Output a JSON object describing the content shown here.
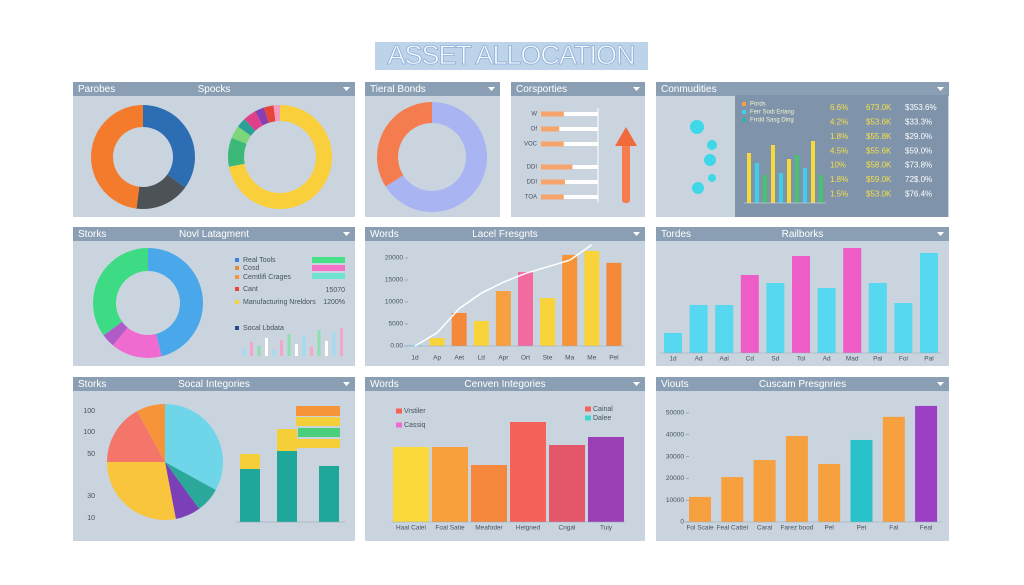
{
  "title": "ASSET ALLOCATION",
  "chart_data": [
    {
      "type": "donut",
      "title": "Parobes",
      "subtitle": "Spocks",
      "series": [
        {
          "values": [
            35,
            17,
            48
          ],
          "colors": [
            "#2d6db3",
            "#4d5256",
            "#f37b2b"
          ]
        },
        {
          "values": [
            72,
            9,
            4,
            3,
            4,
            3,
            3,
            2
          ],
          "colors": [
            "#f9cf3c",
            "#3cb878",
            "#7ed67a",
            "#2aa198",
            "#e0408a",
            "#8a3fb0",
            "#e9443a",
            "#f49ac1"
          ]
        }
      ]
    },
    {
      "type": "donut",
      "title": "Tieral Bonds",
      "series": [
        {
          "values": [
            66,
            34
          ],
          "colors": [
            "#a9b4f3",
            "#f47c4f"
          ]
        }
      ]
    },
    {
      "type": "hbar",
      "title": "Corsporties",
      "categories": [
        "W",
        "Of",
        "VOC",
        "DDI",
        "DDI",
        "TOA"
      ],
      "values": [
        40,
        32,
        40,
        55,
        42,
        40
      ],
      "color": "#f6a46c",
      "xlim": [
        0,
        100
      ]
    },
    {
      "type": "table",
      "title": "Conmudities",
      "legend": [
        {
          "name": "Pords",
          "color": "#f7a040"
        },
        {
          "name": "Ferr Sodi Ertang",
          "color": "#3fd0e8"
        },
        {
          "name": "Frrdd Sasg Ding",
          "color": "#2fb3a8"
        }
      ],
      "rows": [
        [
          "6.6%",
          "673.0K",
          "$353.6%"
        ],
        [
          "4.2%",
          "$53.6K",
          "$33.3%"
        ],
        [
          "1.8%",
          "$55.8K",
          "$29.0%"
        ],
        [
          "4.5%",
          "$55.6K",
          "$59.0%"
        ],
        [
          "10%",
          "$58.0K",
          "$73.8%"
        ],
        [
          "1.8%",
          "$59.0K",
          "72$.0%"
        ],
        [
          "1.5%",
          "$53.0K",
          "$76.4%"
        ]
      ],
      "values": [
        50,
        40,
        28,
        58,
        30,
        44,
        48,
        35,
        62,
        28
      ],
      "colors": [
        "#f5d93a",
        "#3fd0e8",
        "#49c46e",
        "#f5d93a",
        "#3fd0e8",
        "#f5d93a",
        "#49c46e",
        "#3fd0e8",
        "#f5d93a",
        "#49c46e"
      ],
      "ylim": [
        0,
        70
      ]
    },
    {
      "type": "donut-legend",
      "title": "Storks",
      "subtitle": "Novl Latagment",
      "values": [
        46,
        15,
        4,
        35
      ],
      "colors": [
        "#4aa8ea",
        "#f06bd0",
        "#b05cc8",
        "#3ddc84"
      ],
      "legend": [
        {
          "name": "Real Tools",
          "color": "#3c7fd8"
        },
        {
          "name": "Cosd",
          "color": "#e58a3a"
        },
        {
          "name": "Cemtlifi Crages",
          "color": "#f7943a"
        },
        {
          "name": "Cant",
          "color": "#e9443a"
        },
        {
          "name": "Manufacturing Nreldors",
          "color": "#f5d33a"
        },
        {
          "name": "Socal Lbdata",
          "color": "#2b4a8a"
        }
      ],
      "notes": [
        "15070",
        "1200%"
      ],
      "swatches": [
        "#49e08a",
        "#f472c9",
        "#6fe3d0"
      ],
      "bars": {
        "values": [
          8,
          14,
          10,
          18,
          6,
          16,
          22,
          12,
          20,
          9,
          26,
          15,
          24,
          28
        ],
        "colors": [
          "#9fdcf0",
          "#f4a6c8",
          "#8fe0b0",
          "#ffffff"
        ]
      },
      "ylim": [
        0,
        30
      ]
    },
    {
      "type": "bar-line",
      "title": "Words",
      "subtitle": "Lacel Fresgnts",
      "categories": [
        "1d",
        "Ap",
        "Aet",
        "Ld",
        "Apr",
        "Ort",
        "Ste",
        "Ma",
        "Me",
        "Pel"
      ],
      "series": [
        {
          "values": [
            250,
            1800,
            7500,
            5700,
            12500,
            16800,
            10900,
            20700,
            21600,
            18900
          ],
          "colors": [
            "#8fd0f0",
            "#f9d33a",
            "#f5893a",
            "#f9d33a",
            "#f7a040",
            "#f26aa0",
            "#f9d33a",
            "#f7943a",
            "#f9d33a",
            "#f5893a"
          ]
        },
        {
          "values": [
            0,
            3000,
            8500,
            12000,
            14500,
            16500,
            18000,
            19500,
            23000,
            null
          ],
          "color": "#ffffff"
        }
      ],
      "ylim": [
        0,
        23000
      ],
      "yticks": [
        {
          "value": 0,
          "label": "0.00"
        },
        5000,
        10000,
        15000,
        20000
      ]
    },
    {
      "type": "bar",
      "title": "Tordes",
      "subtitle": "Railborks",
      "categories": [
        "1d",
        "Ad",
        "Aal",
        "Cd",
        "Sd",
        "Tol",
        "Ad",
        "Mad",
        "Pal",
        "Fol",
        "Pal"
      ],
      "values": [
        20,
        48,
        48,
        78,
        70,
        97,
        65,
        105,
        70,
        50,
        100
      ],
      "colors": [
        "#55d8f0",
        "#55d8f0",
        "#55d8f0",
        "#ee5cc8",
        "#55d8f0",
        "#ee5cc8",
        "#55d8f0",
        "#ee5cc8",
        "#55d8f0",
        "#55d8f0",
        "#55d8f0"
      ],
      "ylim": [
        0,
        110
      ]
    },
    {
      "type": "pie-stack",
      "title": "Storks",
      "subtitle": "Socal Integories",
      "axis_labels": [
        "100",
        "100",
        "50",
        "30",
        "10"
      ],
      "values": [
        33,
        7,
        7,
        28,
        17,
        8
      ],
      "colors": [
        "#6fd6ea",
        "#2aa89a",
        "#7b3fb8",
        "#f9c53c",
        "#f4756a",
        "#f7943a"
      ],
      "stack": {
        "series": [
          {
            "values": [
              53,
              71,
              56
            ],
            "color": "#1fa89a"
          },
          {
            "values": [
              15,
              22,
              0
            ],
            "color": "#f5cf3a"
          }
        ]
      },
      "ylim": [
        0,
        100
      ]
    },
    {
      "type": "bar",
      "title": "Words",
      "subtitle": "Cenven Integories",
      "categories": [
        "Haal Calel",
        "Foal Satie",
        "Meafoder",
        "Helgned",
        "Cngal",
        "Tuiy"
      ],
      "values": [
        75,
        75,
        57,
        100,
        77,
        85
      ],
      "colors": [
        "#fbd93a",
        "#f7a03c",
        "#f5883c",
        "#f4625a",
        "#e4566a",
        "#9b3fb5"
      ],
      "ylim": [
        0,
        110
      ],
      "legend": [
        {
          "name": "Vrstiler",
          "color": "#f4625a"
        },
        {
          "name": "Cassiq",
          "color": "#f06bd0"
        },
        {
          "name": "Cainal",
          "color": "#f4625a"
        },
        {
          "name": "Dalee",
          "color": "#3fd6d0"
        }
      ]
    },
    {
      "type": "bar",
      "title": "Viouts",
      "subtitle": "Cuscam Presgnries",
      "categories": [
        "Fol Scale",
        "Feal Cattel",
        "Caral",
        "Farez bood",
        "Pel",
        "Pet",
        "Fal",
        "Feal"
      ],
      "values": [
        11500,
        20600,
        28400,
        39400,
        26600,
        37600,
        48200,
        53200
      ],
      "colors": [
        "#f7a040",
        "#f7a040",
        "#f7a040",
        "#f7a040",
        "#f7a040",
        "#28c2c8",
        "#f7a040",
        "#9b40c4"
      ],
      "ylim": [
        0,
        55000
      ],
      "yticks": [
        0,
        10000,
        20000,
        30000,
        40000,
        50000
      ]
    }
  ]
}
